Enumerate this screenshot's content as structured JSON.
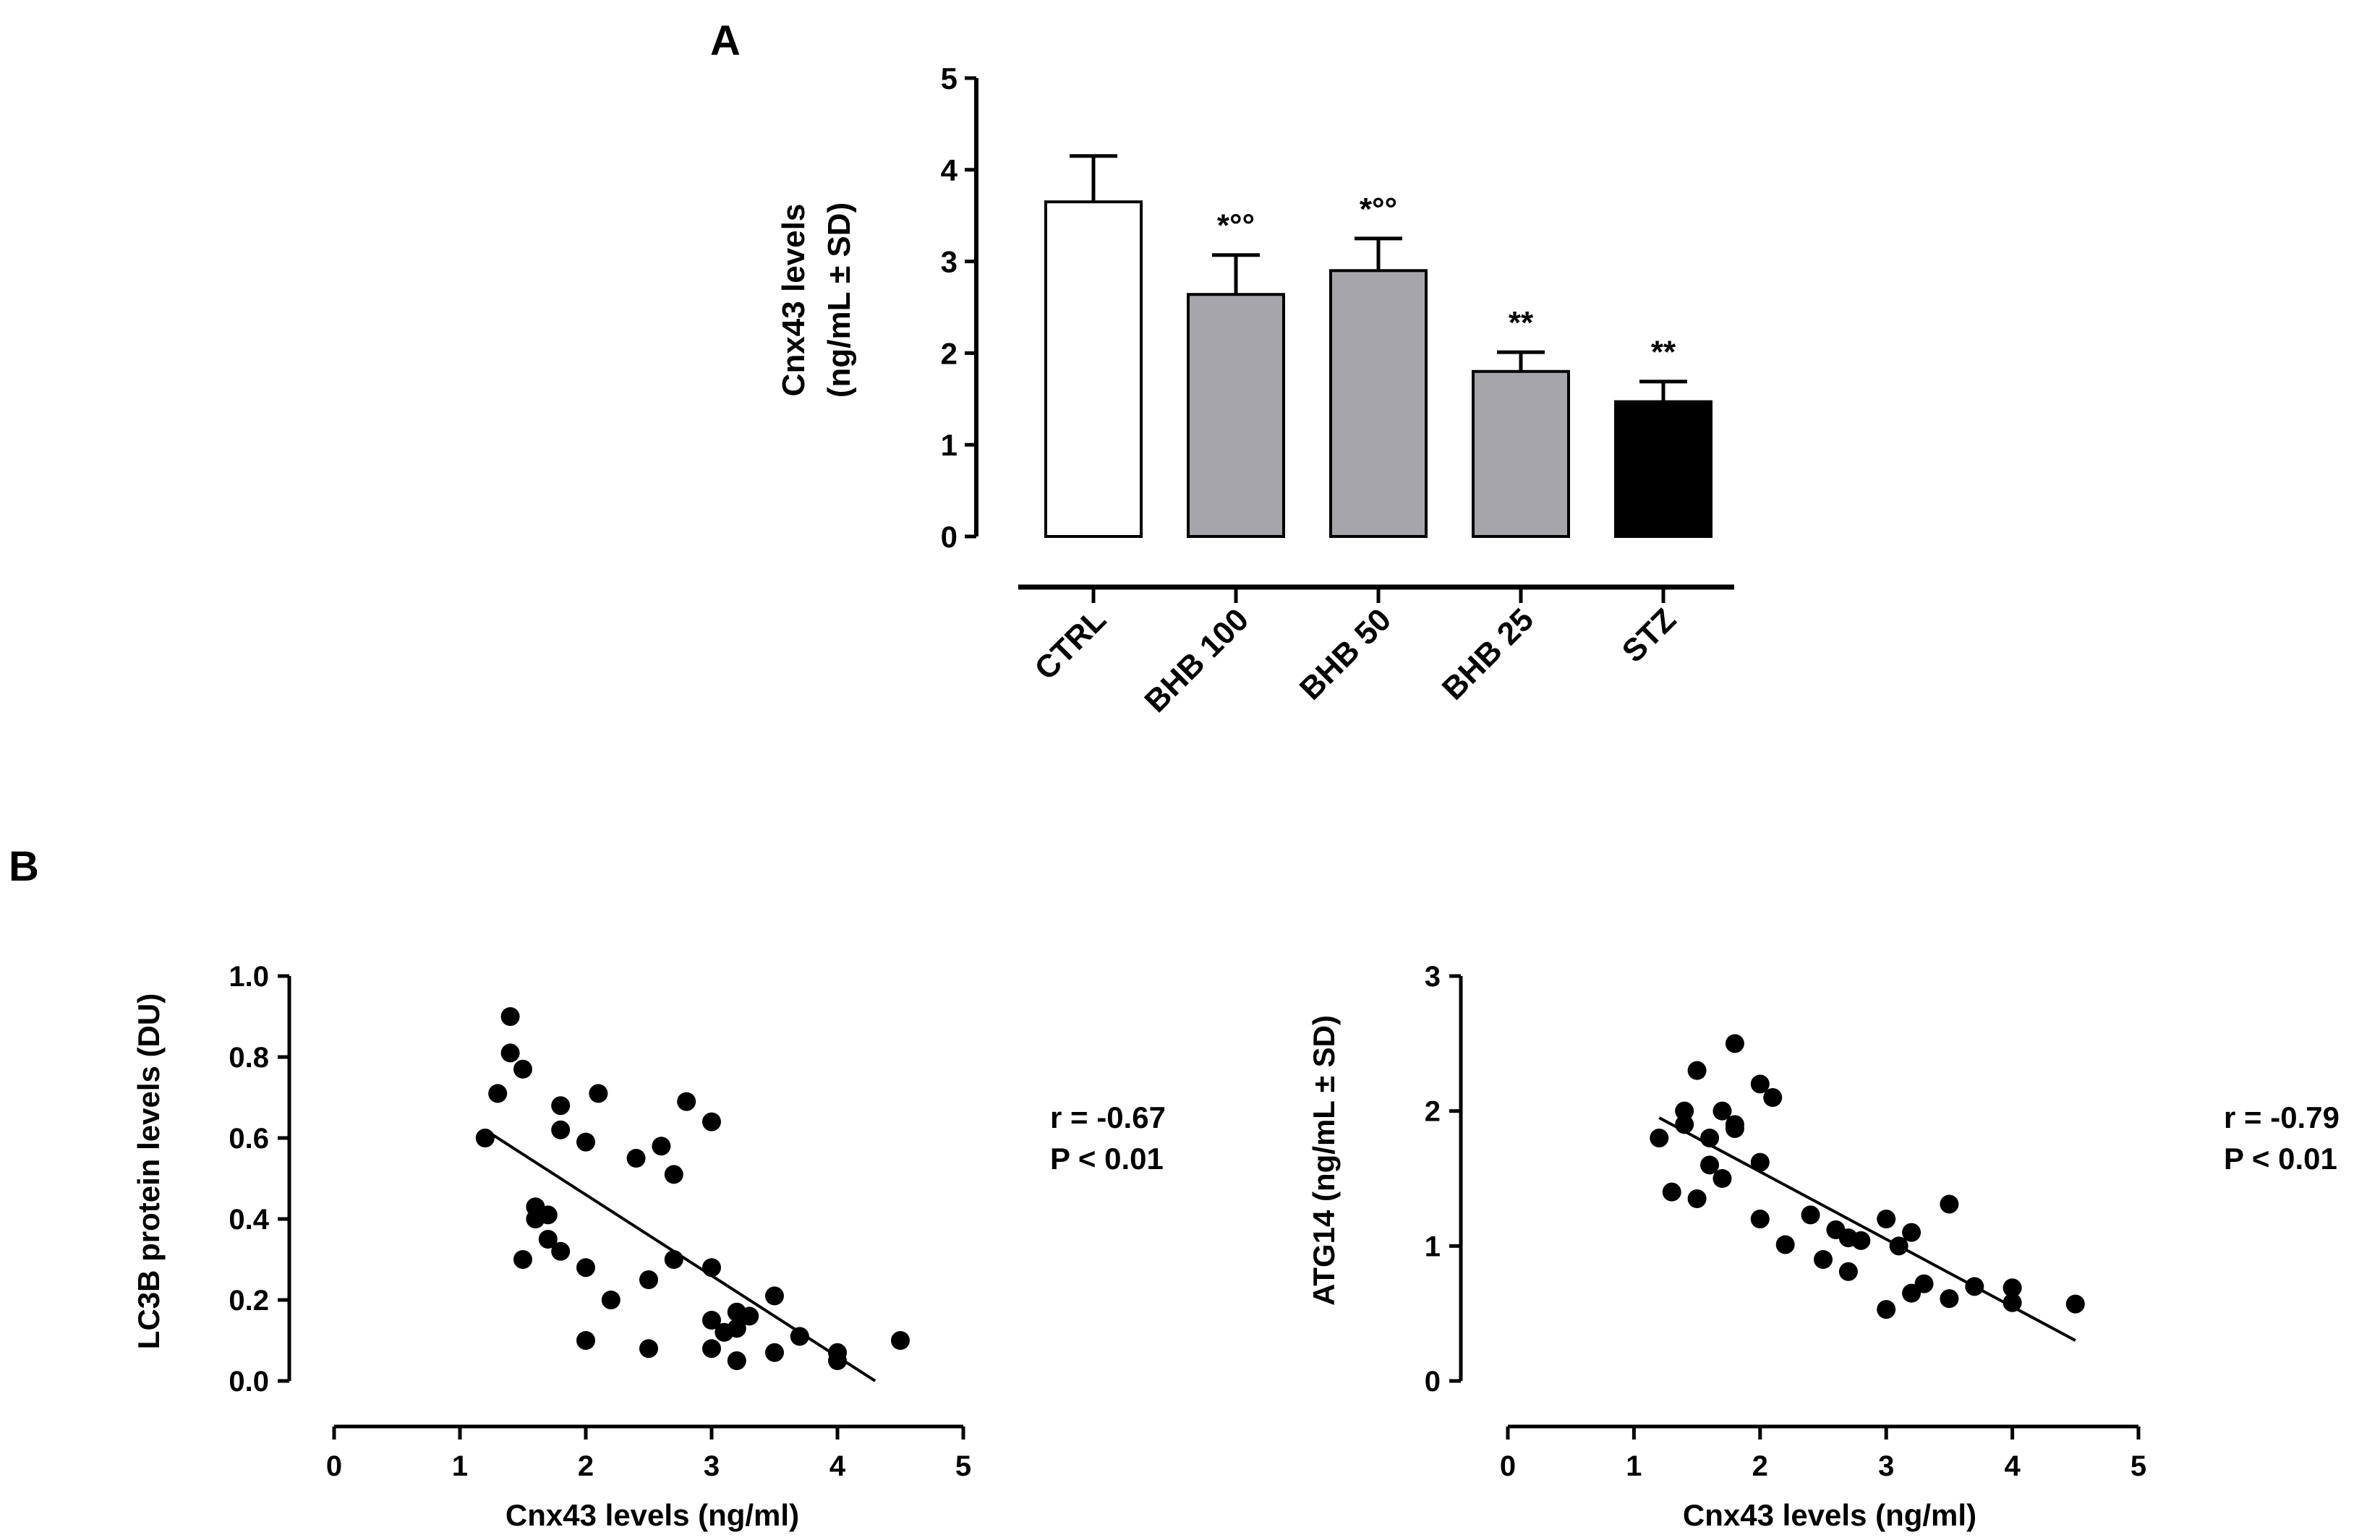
{
  "panels": {
    "a": {
      "label": "A"
    },
    "b": {
      "label": "B"
    }
  },
  "chart_data": [
    {
      "type": "bar",
      "panel": "A",
      "categories": [
        "CTRL",
        "BHB 100",
        "BHB 50",
        "BHB 25",
        "STZ"
      ],
      "values": [
        3.65,
        2.64,
        2.9,
        1.8,
        1.47
      ],
      "errors": [
        0.5,
        0.43,
        0.35,
        0.21,
        0.22
      ],
      "fills": [
        "#ffffff",
        "#a6a6aa",
        "#a6a6aa",
        "#a6a6aa",
        "#000000"
      ],
      "annotations": [
        "",
        "*°°",
        "*°°",
        "**",
        "**"
      ],
      "ylabel_line1": "Cnx43 levels",
      "ylabel_line2": "(ng/mL ± SD)",
      "ylim": [
        0,
        5
      ],
      "yticks": [
        "0",
        "1",
        "2",
        "3",
        "4",
        "5"
      ]
    },
    {
      "type": "scatter",
      "panel": "B",
      "xlabel": "Cnx43 levels (ng/ml)",
      "ylabel": "LC3B protein levels (DU)",
      "xlim": [
        0,
        5
      ],
      "ylim": [
        0,
        1.0
      ],
      "xticks": [
        "0",
        "1",
        "2",
        "3",
        "4",
        "5"
      ],
      "yticks": [
        "0.0",
        "0.2",
        "0.4",
        "0.6",
        "0.8",
        "1.0"
      ],
      "stats": [
        "r = -0.67",
        "P < 0.01"
      ],
      "fit": {
        "x": [
          1.2,
          4.3
        ],
        "y": [
          0.62,
          0.0
        ]
      },
      "points": [
        [
          1.2,
          0.6
        ],
        [
          1.3,
          0.71
        ],
        [
          1.4,
          0.9
        ],
        [
          1.4,
          0.81
        ],
        [
          1.5,
          0.77
        ],
        [
          1.5,
          0.3
        ],
        [
          1.6,
          0.43
        ],
        [
          1.6,
          0.4
        ],
        [
          1.7,
          0.41
        ],
        [
          1.7,
          0.35
        ],
        [
          1.8,
          0.32
        ],
        [
          1.8,
          0.62
        ],
        [
          1.8,
          0.68
        ],
        [
          2.0,
          0.59
        ],
        [
          2.0,
          0.28
        ],
        [
          2.0,
          0.1
        ],
        [
          2.1,
          0.71
        ],
        [
          2.2,
          0.2
        ],
        [
          2.4,
          0.55
        ],
        [
          2.5,
          0.25
        ],
        [
          2.5,
          0.08
        ],
        [
          2.6,
          0.58
        ],
        [
          2.7,
          0.51
        ],
        [
          2.7,
          0.3
        ],
        [
          2.8,
          0.69
        ],
        [
          3.0,
          0.64
        ],
        [
          3.0,
          0.28
        ],
        [
          3.0,
          0.15
        ],
        [
          3.0,
          0.08
        ],
        [
          3.1,
          0.12
        ],
        [
          3.2,
          0.17
        ],
        [
          3.2,
          0.13
        ],
        [
          3.2,
          0.05
        ],
        [
          3.3,
          0.16
        ],
        [
          3.5,
          0.21
        ],
        [
          3.5,
          0.07
        ],
        [
          3.7,
          0.11
        ],
        [
          4.0,
          0.07
        ],
        [
          4.0,
          0.05
        ],
        [
          4.5,
          0.1
        ]
      ]
    },
    {
      "type": "scatter",
      "panel": "B",
      "xlabel": "Cnx43 levels (ng/ml)",
      "ylabel": "ATG14 (ng/mL ± SD)",
      "xlim": [
        0,
        5
      ],
      "ylim": [
        0,
        3
      ],
      "xticks": [
        "0",
        "1",
        "2",
        "3",
        "4",
        "5"
      ],
      "yticks": [
        "0",
        "1",
        "2",
        "3"
      ],
      "stats": [
        "r = -0.79",
        "P < 0.01"
      ],
      "fit": {
        "x": [
          1.2,
          4.5
        ],
        "y": [
          1.95,
          0.3
        ]
      },
      "points": [
        [
          1.2,
          1.8
        ],
        [
          1.3,
          1.4
        ],
        [
          1.4,
          2.0
        ],
        [
          1.4,
          1.9
        ],
        [
          1.5,
          2.3
        ],
        [
          1.5,
          1.35
        ],
        [
          1.6,
          1.8
        ],
        [
          1.6,
          1.6
        ],
        [
          1.7,
          2.0
        ],
        [
          1.7,
          1.5
        ],
        [
          1.8,
          2.5
        ],
        [
          1.8,
          1.9
        ],
        [
          1.8,
          1.87
        ],
        [
          2.0,
          2.2
        ],
        [
          2.0,
          1.62
        ],
        [
          2.0,
          1.2
        ],
        [
          2.1,
          2.1
        ],
        [
          2.2,
          1.01
        ],
        [
          2.4,
          1.23
        ],
        [
          2.5,
          0.9
        ],
        [
          2.6,
          1.12
        ],
        [
          2.7,
          1.06
        ],
        [
          2.7,
          0.81
        ],
        [
          2.8,
          1.04
        ],
        [
          3.0,
          1.2
        ],
        [
          3.0,
          0.53
        ],
        [
          3.1,
          1.0
        ],
        [
          3.2,
          1.1
        ],
        [
          3.2,
          0.65
        ],
        [
          3.3,
          0.72
        ],
        [
          3.5,
          1.31
        ],
        [
          3.5,
          0.61
        ],
        [
          3.7,
          0.7
        ],
        [
          4.0,
          0.69
        ],
        [
          4.0,
          0.58
        ],
        [
          4.5,
          0.57
        ]
      ]
    }
  ]
}
